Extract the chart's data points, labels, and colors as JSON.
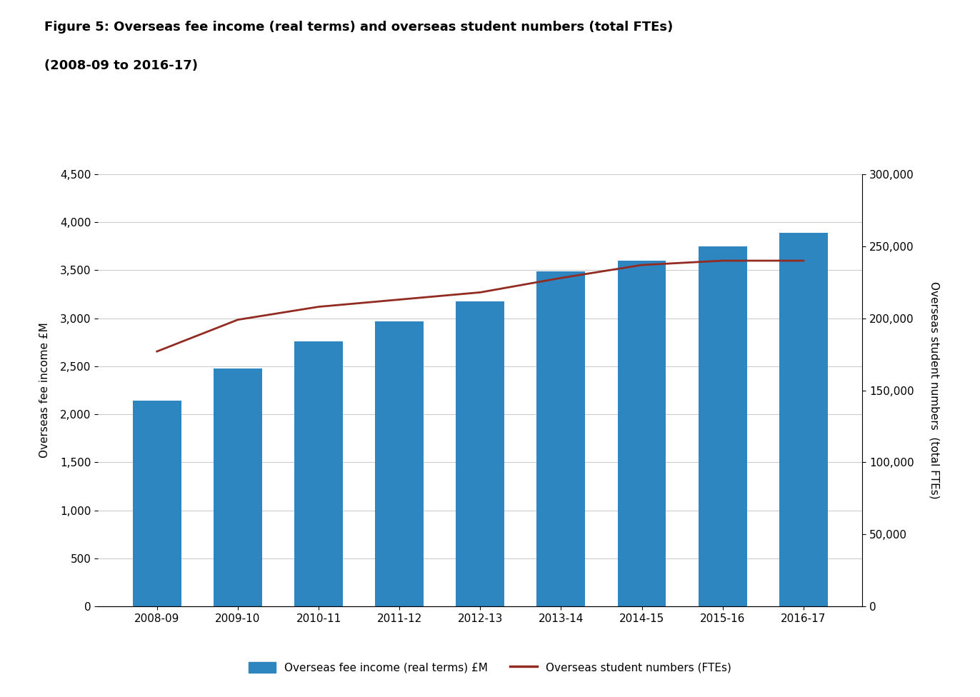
{
  "title_line1": "Figure 5: Overseas fee income (real terms) and overseas student numbers (total FTEs)",
  "title_line2": "(2008-09 to 2016-17)",
  "categories": [
    "2008-09",
    "2009-10",
    "2010-11",
    "2011-12",
    "2012-13",
    "2013-14",
    "2014-15",
    "2015-16",
    "2016-17"
  ],
  "bar_values": [
    2140,
    2475,
    2760,
    2970,
    3175,
    3490,
    3600,
    3750,
    3890
  ],
  "line_values": [
    177000,
    199000,
    208000,
    213000,
    218000,
    228000,
    237000,
    240000,
    240000
  ],
  "bar_color": "#2E86C1",
  "line_color": "#922B21",
  "left_ylabel": "Overseas fee income £M",
  "right_ylabel": "Overseas student numbers  (total FTEs)",
  "left_ylim": [
    0,
    4500
  ],
  "right_ylim": [
    0,
    300000
  ],
  "left_yticks": [
    0,
    500,
    1000,
    1500,
    2000,
    2500,
    3000,
    3500,
    4000,
    4500
  ],
  "right_yticks": [
    0,
    50000,
    100000,
    150000,
    200000,
    250000,
    300000
  ],
  "legend_bar_label": "Overseas fee income (real terms) £M",
  "legend_line_label": "Overseas student numbers (FTEs)",
  "background_color": "#ffffff",
  "grid_color": "#cccccc",
  "title_fontsize": 13,
  "axis_label_fontsize": 11,
  "tick_fontsize": 11,
  "legend_fontsize": 11
}
